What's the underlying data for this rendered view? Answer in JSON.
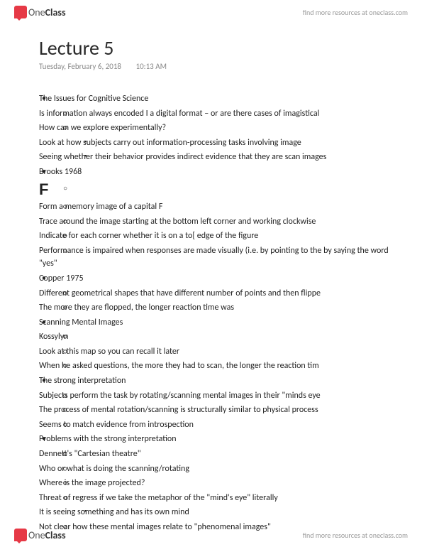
{
  "brand": {
    "name_a": "One",
    "name_b": "Class",
    "tagline": "find more resources at oneclass.com"
  },
  "doc": {
    "title": "Lecture 5",
    "date": "Tuesday, February 6, 2018",
    "time": "10:13 AM"
  },
  "notes": [
    {
      "lvl": 1,
      "t": "The Issues for Cognitive Science"
    },
    {
      "lvl": 2,
      "t": "Is information always encoded I a digital format – or are there cases of imagistical"
    },
    {
      "lvl": 2,
      "t": "How can we explore experimentally?"
    },
    {
      "lvl": 3,
      "t": "Look at how subjects carry out information-processing tasks involving image"
    },
    {
      "lvl": 3,
      "t": "Seeing whether their behavior provides indirect evidence that they are scan images"
    },
    {
      "lvl": 1,
      "t": "Brooks 1968"
    },
    {
      "lvl": "F",
      "t": "F"
    },
    {
      "lvl": 2,
      "t": "Form a memory image of a capital F"
    },
    {
      "lvl": 2,
      "t": "Trace around the image starting at the bottom left corner and working clockwise"
    },
    {
      "lvl": 2,
      "t": "Indicate for each corner whether it is on a to[ edge of the figure"
    },
    {
      "lvl": 2,
      "t": "Performance is impaired when responses are made visually (i.e. by pointing to the by saying the word \"yes\""
    },
    {
      "lvl": 1,
      "t": "Copper 1975"
    },
    {
      "lvl": 2,
      "t": "Different geometrical shapes that have different number of points and then flippe"
    },
    {
      "lvl": 2,
      "t": "The more they are flopped, the longer reaction time was"
    },
    {
      "lvl": 1,
      "t": "Scanning Mental Images"
    },
    {
      "lvl": 2,
      "t": "Kossylyn"
    },
    {
      "lvl": 2,
      "t": "Look at this map so you can recall it later"
    },
    {
      "lvl": 2,
      "t": "When he asked questions, the more they had to scan, the longer the reaction tim"
    },
    {
      "lvl": 1,
      "t": "The strong interpretation"
    },
    {
      "lvl": 2,
      "t": "Subjects perform the task by rotating/scanning mental images in their \"minds eye"
    },
    {
      "lvl": 2,
      "t": "The process of mental rotation/scanning is structurally similar to physical process"
    },
    {
      "lvl": 2,
      "t": "Seems to match evidence from introspection"
    },
    {
      "lvl": 1,
      "t": "Problems with the strong interpretation"
    },
    {
      "lvl": 2,
      "t": "Dennett's \"Cartesian theatre\""
    },
    {
      "lvl": 2,
      "t": "Who or what is doing the scanning/rotating"
    },
    {
      "lvl": 2,
      "t": "Where is the image projected?"
    },
    {
      "lvl": 2,
      "t": "Threat of regress if we take the metaphor of the \"mind's eye\" literally"
    },
    {
      "lvl": 3,
      "t": "It is seeing something and has its own mind"
    },
    {
      "lvl": 2,
      "t": "Not clear how these mental images relate to \"phenomenal images\""
    }
  ]
}
